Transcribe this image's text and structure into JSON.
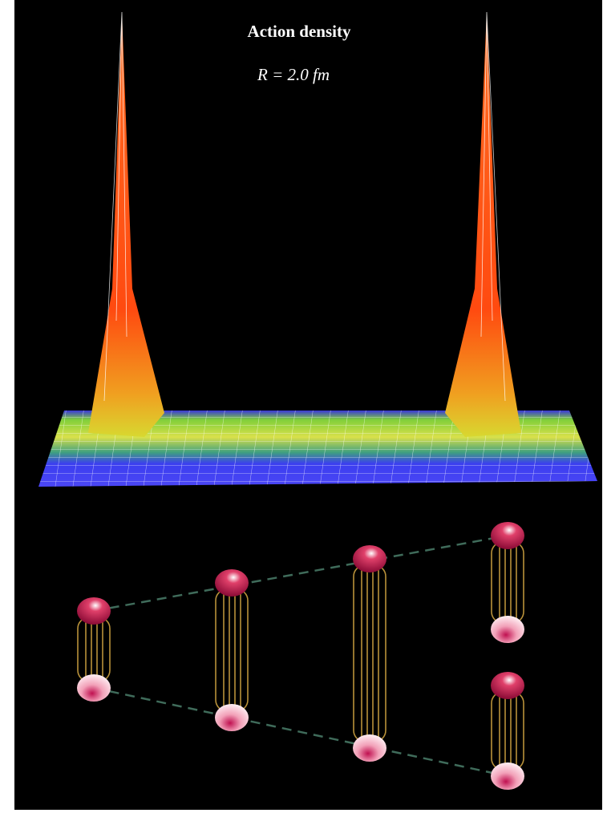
{
  "title": "Action density",
  "subtitle": "R = 2.0 fm"
}
